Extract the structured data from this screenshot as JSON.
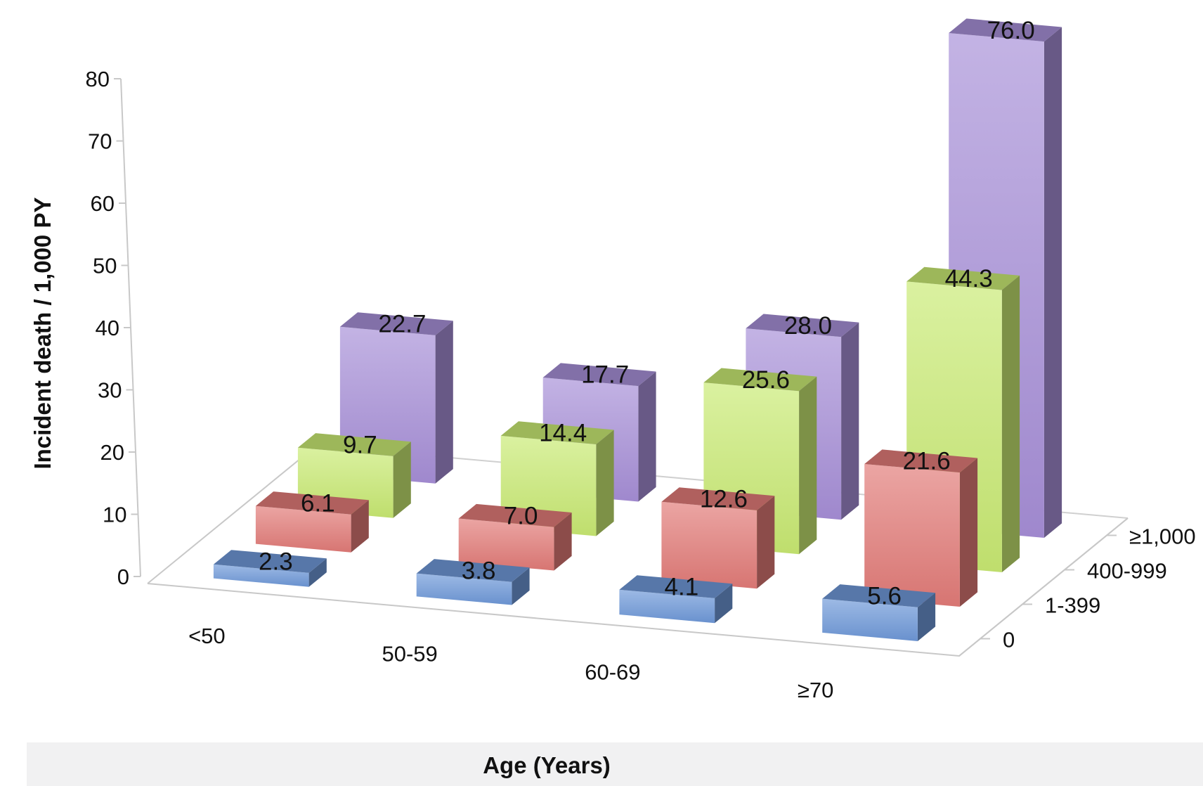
{
  "chart_data": {
    "type": "bar",
    "is_3d": true,
    "title": "",
    "xlabel": "Age (Years)",
    "ylabel": "Incident death / 1,000 PY",
    "zlabel": "",
    "categories": [
      "<50",
      "50-59",
      "60-69",
      "≥70"
    ],
    "series": [
      {
        "name": "0",
        "color": "#6f99d9",
        "values": [
          2.3,
          3.8,
          4.1,
          5.6
        ],
        "labels": [
          "2.3",
          "3.8",
          "4.1",
          "5.6"
        ]
      },
      {
        "name": "1-399",
        "color": "#e27b78",
        "values": [
          6.1,
          7.0,
          12.6,
          21.6
        ],
        "labels": [
          "6.1",
          "7.0",
          "12.6",
          "21.6"
        ]
      },
      {
        "name": "400-999",
        "color": "#c9ea73",
        "values": [
          9.7,
          14.4,
          25.6,
          44.3
        ],
        "labels": [
          "9.7",
          "14.4",
          "25.6",
          "44.3"
        ]
      },
      {
        "name": "≥1,000",
        "color": "#a78fd8",
        "values": [
          22.7,
          17.7,
          28.0,
          76.0
        ],
        "labels": [
          "22.7",
          "17.7",
          "28.0",
          "76.0"
        ]
      }
    ],
    "yticks": [
      "0",
      "10",
      "20",
      "30",
      "40",
      "50",
      "60",
      "70",
      "80"
    ],
    "ylim": [
      0,
      80
    ],
    "legend": "none",
    "grid": false
  }
}
